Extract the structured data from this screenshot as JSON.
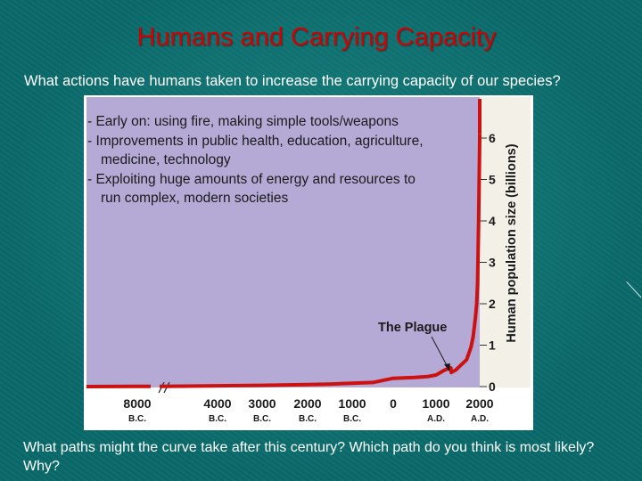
{
  "slide": {
    "title": "Humans and Carrying Capacity",
    "question": "What actions have humans taken to increase the carrying capacity of our species?",
    "bottom_question": "What paths might the curve take after this century? Which path do you think is most likely? Why?"
  },
  "bullets": [
    {
      "line": "- Early on: using fire, making simple tools/weapons",
      "cont": []
    },
    {
      "line": "- Improvements in public health, education, agriculture,",
      "cont": [
        "medicine, technology"
      ]
    },
    {
      "line": "- Exploiting huge amounts of energy and resources to",
      "cont": [
        "run complex, modern societies"
      ]
    }
  ],
  "chart_data": {
    "type": "line",
    "ylabel": "Human population size (billions)",
    "ylim": [
      0,
      7
    ],
    "y_ticks": [
      0,
      1,
      2,
      3,
      4,
      5,
      6
    ],
    "x_ticks": [
      {
        "value": "8000",
        "era": "B.C."
      },
      {
        "value": "4000",
        "era": "B.C."
      },
      {
        "value": "3000",
        "era": "B.C."
      },
      {
        "value": "2000",
        "era": "B.C."
      },
      {
        "value": "1000",
        "era": "B.C."
      },
      {
        "value": "0",
        "era": ""
      },
      {
        "value": "1000",
        "era": "A.D."
      },
      {
        "value": "2000",
        "era": "A.D."
      }
    ],
    "annotation": "The Plague",
    "series": [
      {
        "points": [
          [
            -10000,
            0.0
          ],
          [
            -8000,
            0.005
          ],
          [
            -6000,
            0.01
          ],
          [
            -4000,
            0.02
          ],
          [
            -3000,
            0.03
          ],
          [
            -2000,
            0.05
          ],
          [
            -1500,
            0.06
          ],
          [
            -1000,
            0.08
          ],
          [
            -500,
            0.1
          ],
          [
            0,
            0.2
          ],
          [
            500,
            0.22
          ],
          [
            800,
            0.24
          ],
          [
            1000,
            0.28
          ],
          [
            1200,
            0.4
          ],
          [
            1340,
            0.45
          ],
          [
            1350,
            0.34
          ],
          [
            1450,
            0.4
          ],
          [
            1600,
            0.55
          ],
          [
            1700,
            0.65
          ],
          [
            1800,
            0.95
          ],
          [
            1850,
            1.2
          ],
          [
            1900,
            1.65
          ],
          [
            1930,
            2.0
          ],
          [
            1950,
            2.5
          ],
          [
            1960,
            3.0
          ],
          [
            1975,
            4.0
          ],
          [
            1987,
            5.0
          ],
          [
            1999,
            6.0
          ],
          [
            2000,
            6.1
          ]
        ]
      }
    ],
    "colors": {
      "plot_background": "#b5a9d6",
      "line": "#cc1111",
      "right_panel": "#f3f0e8"
    }
  }
}
